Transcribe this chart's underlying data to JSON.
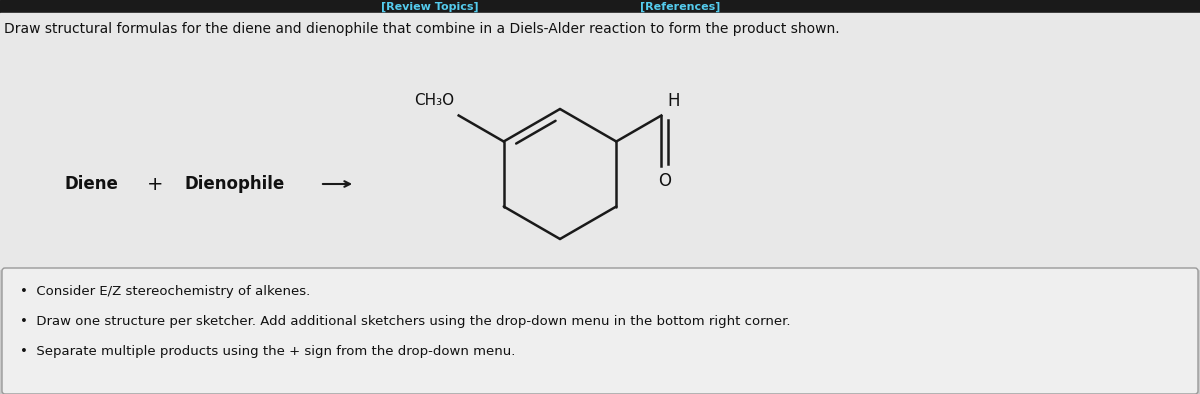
{
  "title_text": "Draw structural formulas for the diene and dienophile that combine in a Diels-Alder reaction to form the product shown.",
  "diene_label": "Diene",
  "plus_label": "+",
  "dienophile_label": "Dienophile",
  "ch3o_label": "CH₃O",
  "h_label": "H",
  "o_label": "O",
  "bullet_points": [
    "Consider E/Z stereochemistry of alkenes.",
    "Draw one structure per sketcher. Add additional sketchers using the drop-down menu in the bottom right corner.",
    "Separate multiple products using the + sign from the drop-down menu."
  ],
  "bg_color": "#cbcbcb",
  "main_bg_color": "#e8e8e8",
  "box_bg_color": "#efefef",
  "line_color": "#1a1a1a",
  "text_color": "#111111",
  "top_link_color": "#55ccee",
  "top_bg_color": "#1a1a1a",
  "figsize": [
    12.0,
    3.94
  ],
  "dpi": 100
}
